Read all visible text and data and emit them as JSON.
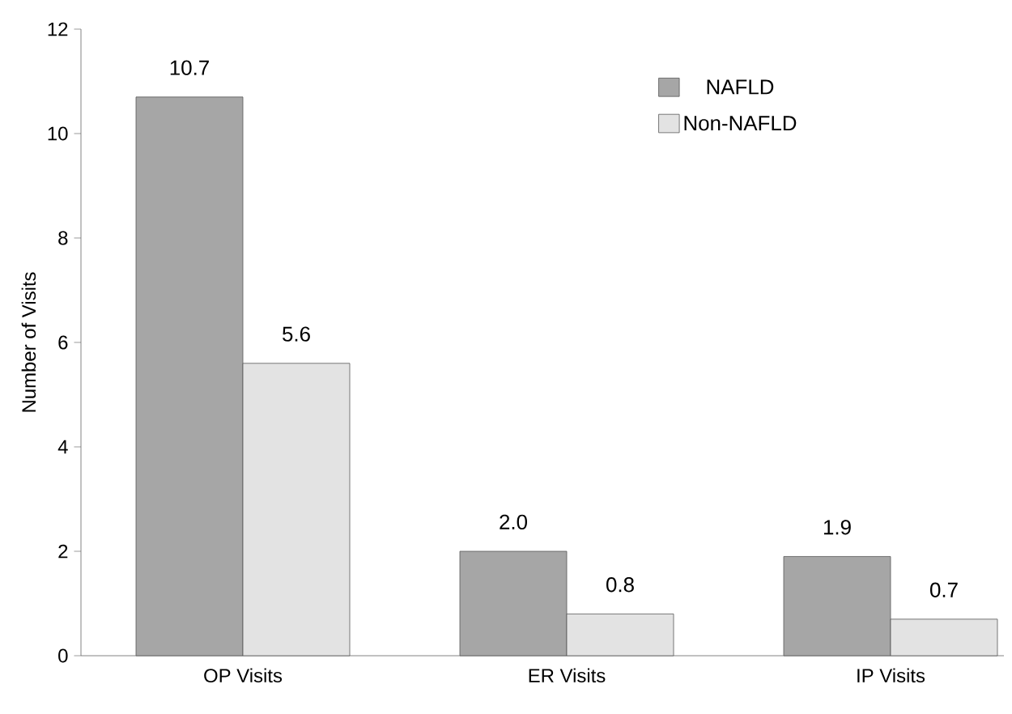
{
  "chart_data": {
    "type": "bar",
    "ylabel": "Number of Visits",
    "categories": [
      "OP Visits",
      "ER Visits",
      "IP Visits"
    ],
    "series": [
      {
        "name": "NAFLD",
        "color": "#a6a6a6",
        "values": [
          10.7,
          2.0,
          1.9
        ],
        "value_labels": [
          "10.7",
          "2.0",
          "1.9"
        ]
      },
      {
        "name": "Non-NAFLD",
        "color": "#e3e3e3",
        "values": [
          5.6,
          0.8,
          0.7
        ],
        "value_labels": [
          "5.6",
          "0.8",
          "0.7"
        ]
      }
    ],
    "ylim": [
      0,
      12
    ],
    "yticks": [
      0,
      2,
      4,
      6,
      8,
      10,
      12
    ],
    "grid": false,
    "legend": "top right"
  }
}
